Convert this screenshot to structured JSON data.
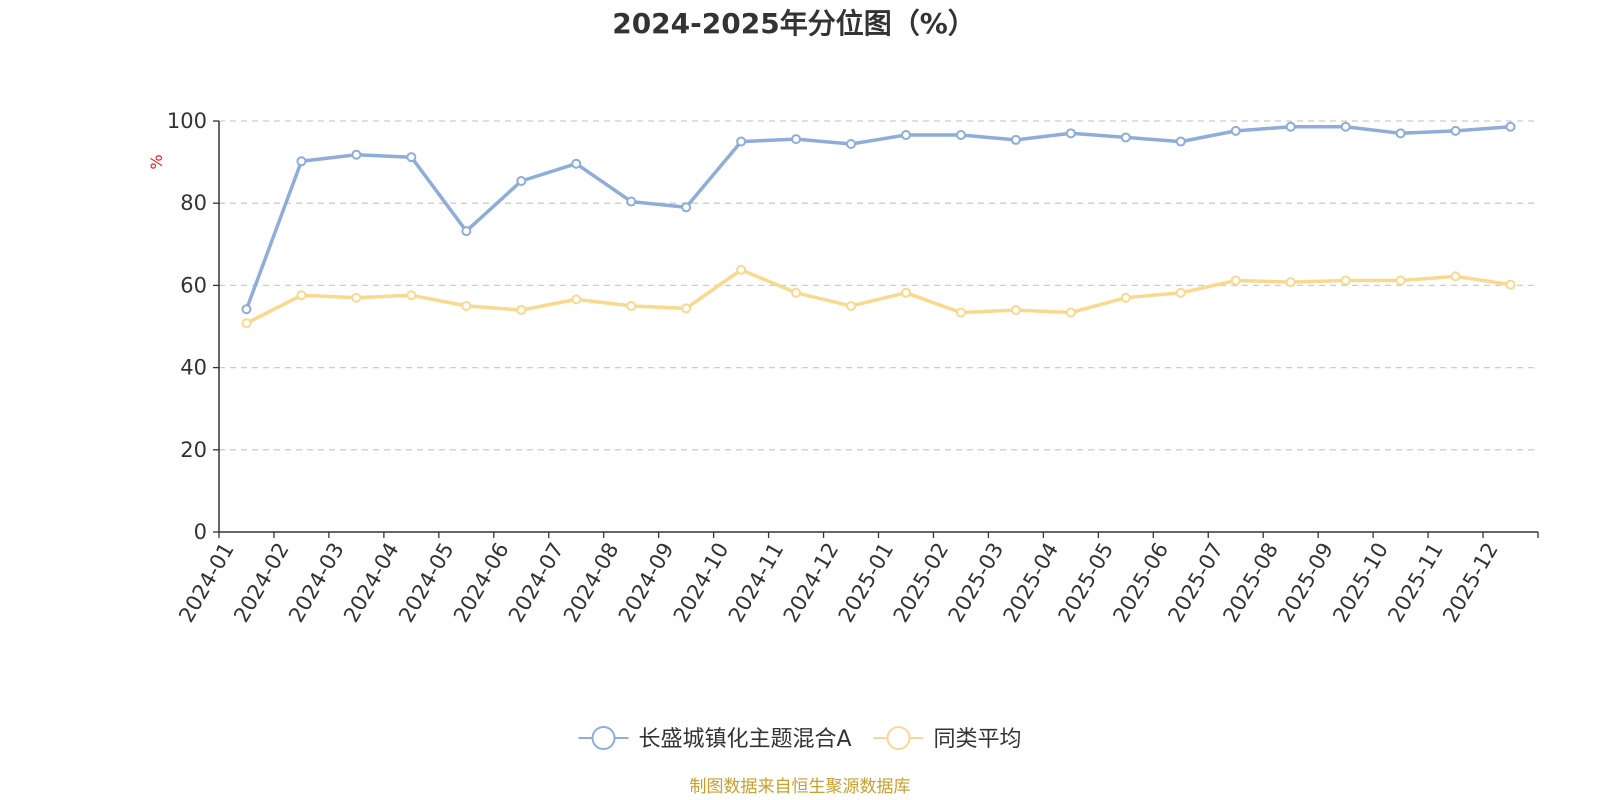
{
  "chart_data": {
    "type": "line",
    "title": "2024-2025年分位图（%）",
    "ylabel": "%",
    "ylim": [
      0,
      100
    ],
    "yticks": [
      0,
      20,
      40,
      60,
      80,
      100
    ],
    "grid": true,
    "legend_position": "bottom-center",
    "categories": [
      "2024-01",
      "2024-02",
      "2024-03",
      "2024-04",
      "2024-05",
      "2024-06",
      "2024-07",
      "2024-08",
      "2024-09",
      "2024-10",
      "2024-11",
      "2024-12",
      "2025-01",
      "2025-02",
      "2025-03",
      "2025-04",
      "2025-05",
      "2025-06",
      "2025-07",
      "2025-08",
      "2025-09",
      "2025-10",
      "2025-11",
      "2025-12"
    ],
    "series": [
      {
        "name": "长盛城镇化主题混合A",
        "color": "#8eadd8",
        "values": [
          54.2,
          90.2,
          91.8,
          91.2,
          73.2,
          85.4,
          89.6,
          80.4,
          79.0,
          95.0,
          95.6,
          94.4,
          96.6,
          96.6,
          95.4,
          97.0,
          96.0,
          95.0,
          97.6,
          98.6,
          98.6,
          97.0,
          97.6,
          98.6
        ]
      },
      {
        "name": "同类平均",
        "color": "#f9d98f",
        "values": [
          50.8,
          57.6,
          57.0,
          57.6,
          55.0,
          54.0,
          56.6,
          55.0,
          54.4,
          63.8,
          58.2,
          55.0,
          58.2,
          53.4,
          54.0,
          53.4,
          57.0,
          58.2,
          61.2,
          60.8,
          61.2,
          61.2,
          62.2,
          60.2
        ]
      }
    ],
    "source": "制图数据来自恒生聚源数据库",
    "colors": {
      "axis": "#333333",
      "grid": "#cccccc",
      "ylabel": "#e02020",
      "source": "#c9a02a"
    }
  }
}
